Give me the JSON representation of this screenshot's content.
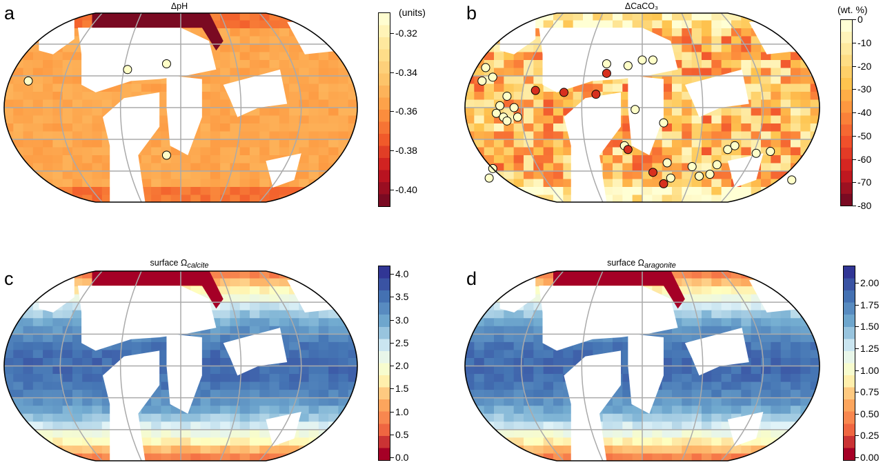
{
  "panels": [
    {
      "label": "a",
      "title": "ΔpH",
      "title_sub": "",
      "unit": "(units)",
      "ticks": [
        "-0.32",
        "-0.34",
        "-0.36",
        "-0.38",
        "-0.40"
      ],
      "colormap": [
        "#fffdd0",
        "#fee391",
        "#fdc46a",
        "#fd9a42",
        "#f15a2a",
        "#c9151f",
        "#7a0a22"
      ]
    },
    {
      "label": "b",
      "title": "ΔCaCO₃",
      "title_sub": "",
      "unit": "(wt. %)",
      "ticks": [
        "0",
        "-10",
        "-20",
        "-30",
        "-40",
        "-50",
        "-60",
        "-70",
        "-80"
      ],
      "colormap": [
        "#ffffd4",
        "#fee391",
        "#fec44f",
        "#fd8d3c",
        "#f0502b",
        "#d01c1f",
        "#7a0a22"
      ]
    },
    {
      "label": "c",
      "title": "surface Ω",
      "title_sub": "calcite",
      "unit": "",
      "ticks": [
        "4.0",
        "3.5",
        "3.0",
        "2.5",
        "2.0",
        "1.5",
        "1.0",
        "0.5",
        "0.0"
      ],
      "colormap": [
        "#313695",
        "#4575b4",
        "#74add1",
        "#e0f3f8",
        "#ffffbf",
        "#fdae61",
        "#f46d43",
        "#a50026"
      ]
    },
    {
      "label": "d",
      "title": "surface Ω",
      "title_sub": "aragonite",
      "unit": "",
      "ticks": [
        "2.00",
        "1.75",
        "1.50",
        "1.25",
        "1.00",
        "0.75",
        "0.50",
        "0.25",
        "0.00"
      ],
      "colormap": [
        "#313695",
        "#4575b4",
        "#74add1",
        "#e0f3f8",
        "#ffffbf",
        "#fdae61",
        "#f46d43",
        "#a50026"
      ]
    }
  ]
}
